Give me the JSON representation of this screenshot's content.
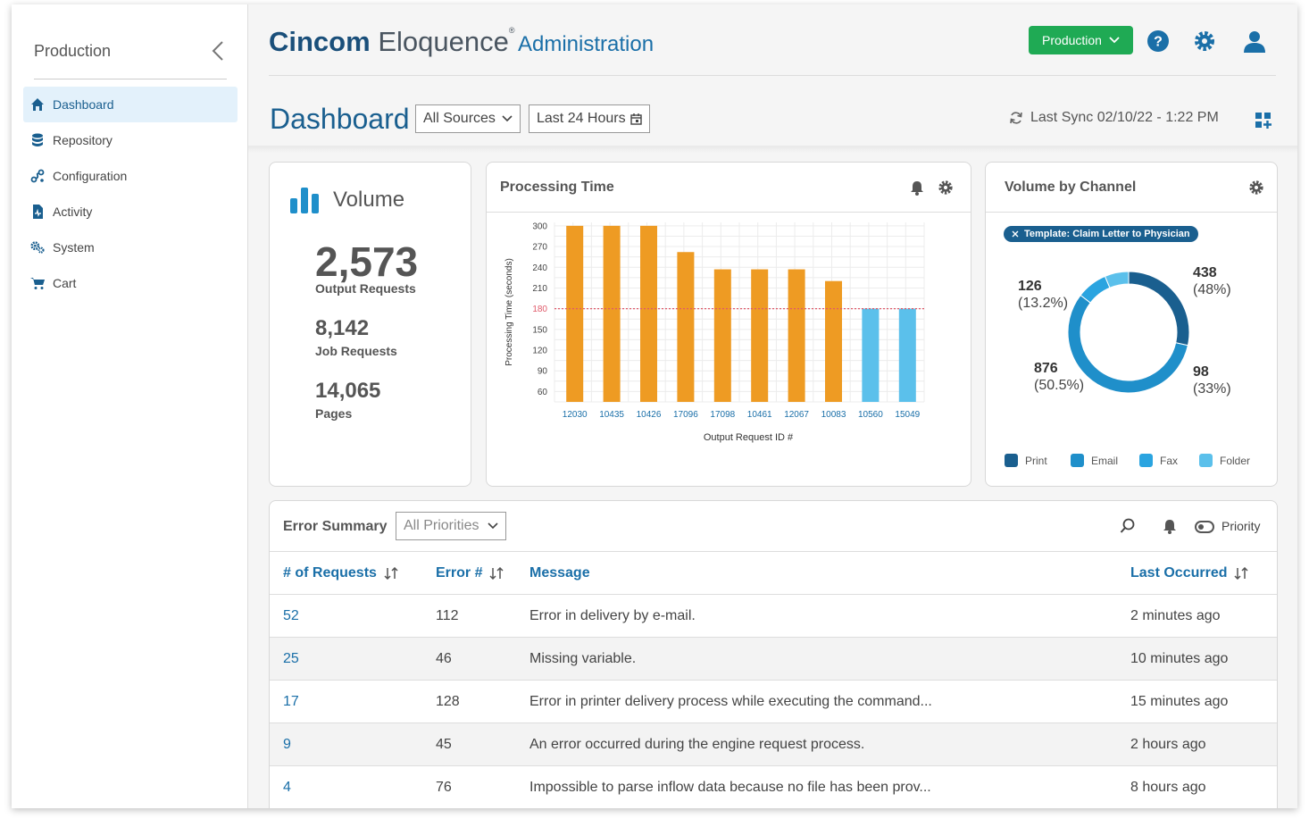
{
  "sidebar": {
    "title": "Production",
    "items": [
      {
        "label": "Dashboard",
        "icon": "home-icon"
      },
      {
        "label": "Repository",
        "icon": "database-icon"
      },
      {
        "label": "Configuration",
        "icon": "configuration-icon"
      },
      {
        "label": "Activity",
        "icon": "activity-icon"
      },
      {
        "label": "System",
        "icon": "gears-icon"
      },
      {
        "label": "Cart",
        "icon": "cart-icon"
      }
    ]
  },
  "header": {
    "brand_bold": "Cincom",
    "brand_light": "Eloquence",
    "brand_mark": "®",
    "section": "Administration",
    "env_label": "Production"
  },
  "dashboard": {
    "title": "Dashboard",
    "source_filter": "All Sources",
    "time_filter": "Last 24 Hours",
    "last_sync": "Last Sync 02/10/22 - 1:22 PM"
  },
  "volume": {
    "title": "Volume",
    "output_requests": "2,573",
    "output_requests_label": "Output Requests",
    "job_requests": "8,142",
    "job_requests_label": "Job Requests",
    "pages": "14,065",
    "pages_label": "Pages"
  },
  "processing": {
    "title": "Processing Time"
  },
  "channel": {
    "title": "Volume by Channel",
    "filter_chip": "Template: Claim Letter to Physician",
    "labels": {
      "a_val": "126",
      "a_pct": "(13.2%)",
      "b_val": "438",
      "b_pct": "(48%)",
      "c_val": "876",
      "c_pct": "(50.5%)",
      "d_val": "98",
      "d_pct": "(33%)"
    },
    "legend": [
      "Print",
      "Email",
      "Fax",
      "Folder"
    ]
  },
  "colors": {
    "accent": "#1a6fa8",
    "env_green": "#1faa54",
    "bar_over": "#ee9b23",
    "bar_under": "#5bc0eb",
    "threshold": "#e05a6a",
    "print": "#1a5f8f",
    "email": "#1f8fca",
    "fax": "#2aa4e0",
    "folder": "#5bc0eb"
  },
  "errors": {
    "title": "Error Summary",
    "priority_filter": "All Priorities",
    "priority_toggle_label": "Priority",
    "columns": [
      "# of Requests",
      "Error #",
      "Message",
      "Last Occurred"
    ],
    "rows": [
      {
        "requests": "52",
        "error": "112",
        "message": "Error in delivery by e-mail.",
        "last": "2 minutes ago"
      },
      {
        "requests": "25",
        "error": "46",
        "message": "Missing variable.",
        "last": "10 minutes ago"
      },
      {
        "requests": "17",
        "error": "128",
        "message": "Error in printer delivery process while executing the command...",
        "last": "15 minutes ago"
      },
      {
        "requests": "9",
        "error": "45",
        "message": "An error occurred during the engine request process.",
        "last": "2 hours ago"
      },
      {
        "requests": "4",
        "error": "76",
        "message": "Impossible to parse inflow data because no file has been prov...",
        "last": "8 hours ago"
      }
    ]
  },
  "chart_data": [
    {
      "type": "bar",
      "categories": [
        "12030",
        "10435",
        "10426",
        "17096",
        "17098",
        "10461",
        "12067",
        "10083",
        "10560",
        "15049"
      ],
      "values": [
        300,
        300,
        300,
        262,
        237,
        237,
        237,
        220,
        180,
        180
      ],
      "threshold": 180,
      "xlabel": "Output Request ID #",
      "ylabel": "Processing Time (seconds)",
      "yticks": [
        60,
        90,
        120,
        150,
        180,
        210,
        240,
        270,
        300
      ],
      "ylim": [
        45,
        305
      ],
      "grid": true
    },
    {
      "type": "pie",
      "donut": true,
      "labels": [
        "Print",
        "Email",
        "Fax",
        "Folder"
      ],
      "values": [
        438,
        876,
        126,
        98
      ],
      "percent_labels": [
        "48%",
        "50.5%",
        "13.2%",
        "33%"
      ]
    }
  ]
}
